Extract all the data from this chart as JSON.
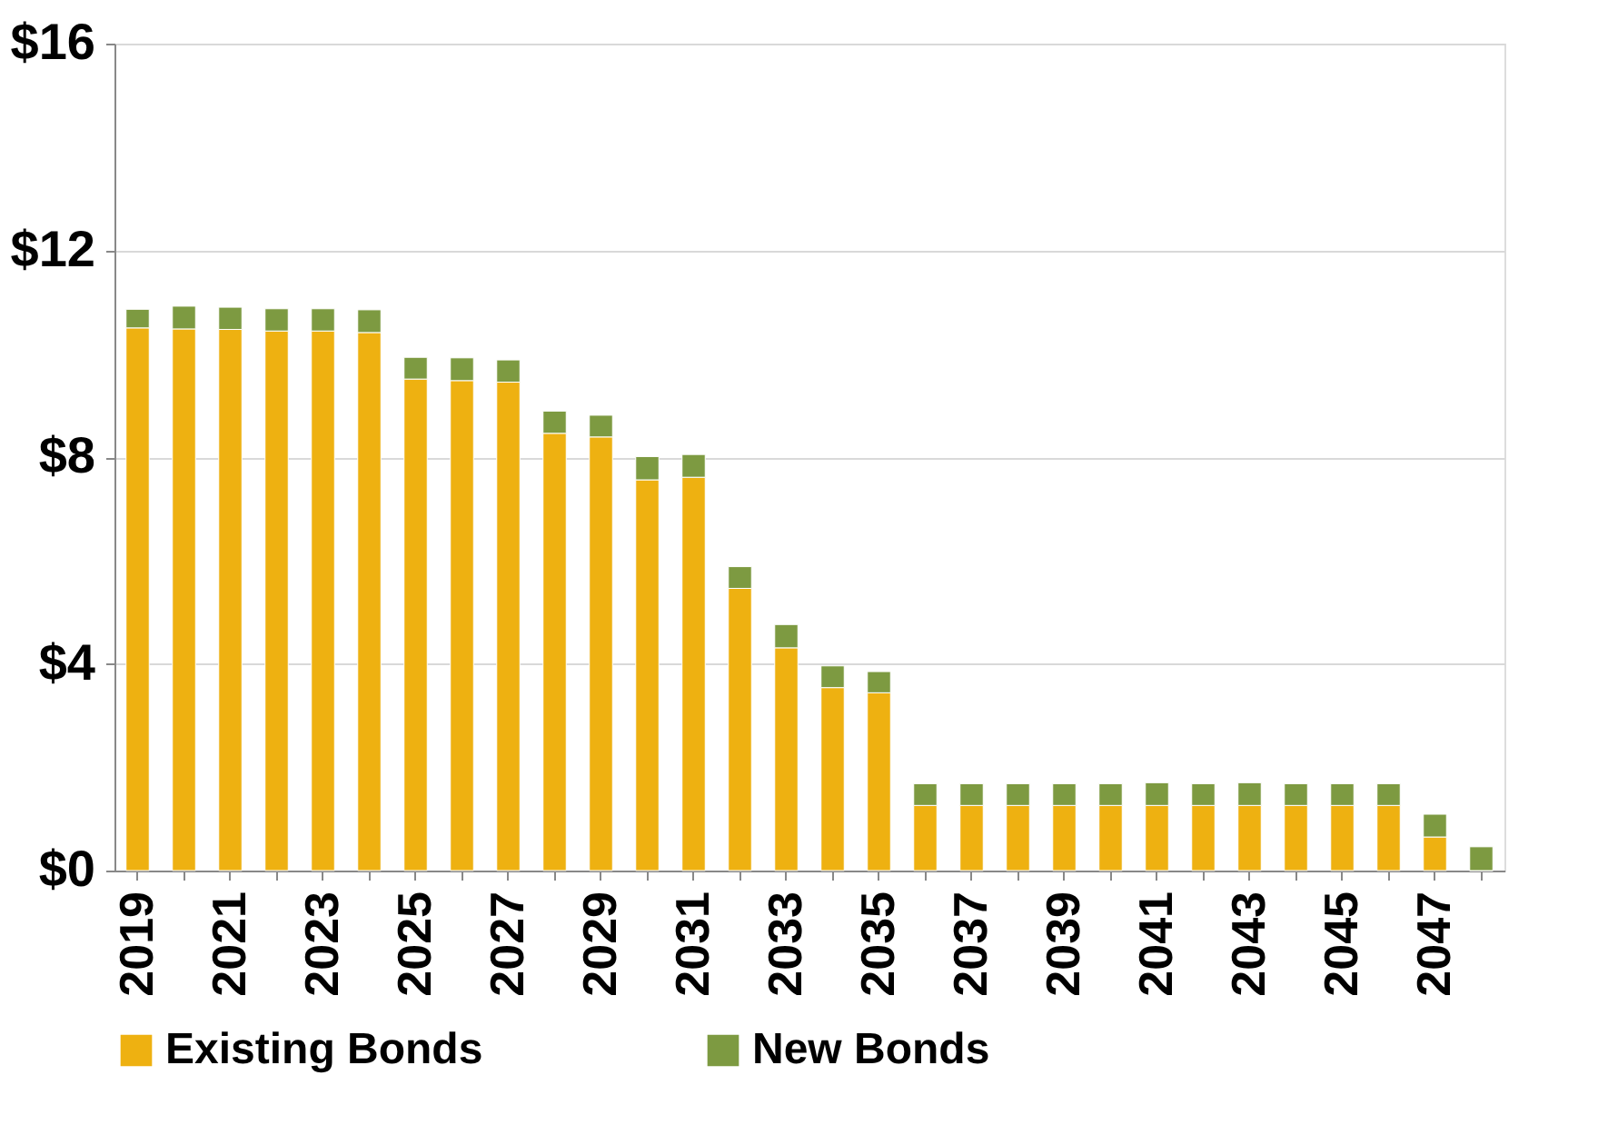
{
  "chart_data": {
    "type": "bar",
    "stacked": true,
    "categories": [
      "2019",
      null,
      "2021",
      null,
      "2023",
      null,
      "2025",
      null,
      "2027",
      null,
      "2029",
      null,
      "2031",
      null,
      "2033",
      null,
      "2035",
      null,
      "2037",
      null,
      "2039",
      null,
      "2041",
      null,
      "2043",
      null,
      "2045",
      null,
      "2047",
      null
    ],
    "series": [
      {
        "name": "Existing Bonds",
        "color": "#eeb111",
        "values": [
          10.5,
          10.48,
          10.47,
          10.44,
          10.44,
          10.41,
          9.51,
          9.48,
          9.45,
          8.46,
          8.39,
          7.56,
          7.61,
          5.46,
          4.31,
          3.54,
          3.44,
          1.26,
          1.26,
          1.26,
          1.26,
          1.26,
          1.26,
          1.26,
          1.26,
          1.26,
          1.26,
          1.26,
          0.65,
          0
        ]
      },
      {
        "name": "New Bonds",
        "color": "#7d9a41",
        "values": [
          0.36,
          0.44,
          0.43,
          0.43,
          0.43,
          0.44,
          0.42,
          0.44,
          0.43,
          0.43,
          0.42,
          0.45,
          0.44,
          0.42,
          0.45,
          0.42,
          0.41,
          0.42,
          0.42,
          0.42,
          0.42,
          0.42,
          0.44,
          0.42,
          0.44,
          0.42,
          0.42,
          0.42,
          0.44,
          0.46
        ]
      }
    ],
    "ylim": [
      0,
      16
    ],
    "yticks": [
      {
        "value": 0,
        "label": "$0"
      },
      {
        "value": 4,
        "label": "$4"
      },
      {
        "value": 8,
        "label": "$8"
      },
      {
        "value": 12,
        "label": "$12"
      },
      {
        "value": 16,
        "label": "$16"
      }
    ],
    "grid": "y",
    "legend": "bottom"
  }
}
